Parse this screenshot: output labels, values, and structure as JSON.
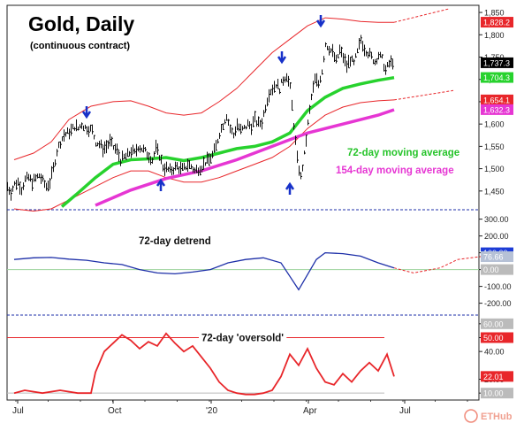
{
  "chart_data": [
    {
      "type": "candlestick",
      "title": "Gold, Daily",
      "subtitle": "(continuous contract)",
      "y_ticks": [
        1450,
        1500,
        1550,
        1600,
        1650,
        1700,
        1750,
        1800,
        1850
      ],
      "y_tick_labels": [
        "1,450",
        "1,500",
        "1,550",
        "1,600",
        "1,650",
        "1,700",
        "1,750",
        "1,800",
        "1,850"
      ],
      "ylim": [
        1410,
        1866
      ],
      "x_tick_labels": [
        "Jul",
        "Oct",
        "'20",
        "Apr",
        "Jul"
      ],
      "annotations": [
        "72-day moving average",
        "154-day moving average"
      ],
      "value_tags": [
        {
          "label": "1,828.2",
          "value": 1828.2,
          "color": "#e8262a"
        },
        {
          "label": "1,737.3",
          "value": 1737.3,
          "color": "#000000"
        },
        {
          "label": "1,704.3",
          "value": 1704.3,
          "color": "#27d22d"
        },
        {
          "label": "1,654.1",
          "value": 1654.1,
          "color": "#e8262a"
        },
        {
          "label": "1,632.3",
          "value": 1632.3,
          "color": "#e636d3"
        }
      ],
      "price_path": [
        [
          0,
          1460
        ],
        [
          4,
          1448
        ],
        [
          8,
          1465
        ],
        [
          12,
          1470
        ],
        [
          16,
          1455
        ],
        [
          20,
          1475
        ],
        [
          24,
          1480
        ],
        [
          28,
          1470
        ],
        [
          32,
          1478
        ],
        [
          36,
          1485
        ],
        [
          40,
          1472
        ],
        [
          44,
          1460
        ],
        [
          48,
          1470
        ],
        [
          52,
          1500
        ],
        [
          56,
          1540
        ],
        [
          60,
          1560
        ],
        [
          64,
          1575
        ],
        [
          68,
          1580
        ],
        [
          72,
          1585
        ],
        [
          76,
          1595
        ],
        [
          80,
          1590
        ],
        [
          84,
          1600
        ],
        [
          88,
          1592
        ],
        [
          92,
          1590
        ],
        [
          96,
          1585
        ],
        [
          100,
          1560
        ],
        [
          104,
          1555
        ],
        [
          108,
          1545
        ],
        [
          112,
          1550
        ],
        [
          116,
          1560
        ],
        [
          120,
          1548
        ],
        [
          124,
          1540
        ],
        [
          128,
          1520
        ],
        [
          132,
          1525
        ],
        [
          136,
          1530
        ],
        [
          140,
          1540
        ],
        [
          144,
          1535
        ],
        [
          148,
          1550
        ],
        [
          152,
          1545
        ],
        [
          156,
          1538
        ],
        [
          160,
          1530
        ],
        [
          164,
          1520
        ],
        [
          168,
          1545
        ],
        [
          172,
          1530
        ],
        [
          176,
          1505
        ],
        [
          180,
          1500
        ],
        [
          184,
          1495
        ],
        [
          188,
          1500
        ],
        [
          192,
          1505
        ],
        [
          196,
          1498
        ],
        [
          200,
          1500
        ],
        [
          204,
          1510
        ],
        [
          208,
          1505
        ],
        [
          212,
          1495
        ],
        [
          216,
          1500
        ],
        [
          220,
          1505
        ],
        [
          224,
          1515
        ],
        [
          228,
          1520
        ],
        [
          232,
          1530
        ],
        [
          236,
          1550
        ],
        [
          240,
          1580
        ],
        [
          244,
          1600
        ],
        [
          248,
          1620
        ],
        [
          252,
          1590
        ],
        [
          256,
          1575
        ],
        [
          260,
          1600
        ],
        [
          264,
          1585
        ],
        [
          268,
          1590
        ],
        [
          272,
          1600
        ],
        [
          276,
          1595
        ],
        [
          280,
          1610
        ],
        [
          284,
          1600
        ],
        [
          288,
          1605
        ],
        [
          292,
          1640
        ],
        [
          296,
          1670
        ],
        [
          300,
          1680
        ],
        [
          304,
          1690
        ],
        [
          308,
          1680
        ],
        [
          312,
          1700
        ],
        [
          316,
          1710
        ],
        [
          320,
          1680
        ],
        [
          324,
          1600
        ],
        [
          328,
          1520
        ],
        [
          332,
          1480
        ],
        [
          336,
          1530
        ],
        [
          340,
          1600
        ],
        [
          344,
          1660
        ],
        [
          348,
          1700
        ],
        [
          352,
          1690
        ],
        [
          356,
          1720
        ],
        [
          360,
          1780
        ],
        [
          364,
          1770
        ],
        [
          368,
          1760
        ],
        [
          372,
          1740
        ],
        [
          376,
          1765
        ],
        [
          380,
          1750
        ],
        [
          384,
          1730
        ],
        [
          388,
          1745
        ],
        [
          392,
          1735
        ],
        [
          396,
          1760
        ],
        [
          400,
          1790
        ],
        [
          404,
          1770
        ],
        [
          408,
          1760
        ],
        [
          412,
          1750
        ],
        [
          416,
          1740
        ],
        [
          420,
          1755
        ],
        [
          424,
          1745
        ],
        [
          428,
          1720
        ],
        [
          432,
          1735
        ],
        [
          436,
          1740
        ]
      ],
      "ma72": [
        [
          62,
          1415
        ],
        [
          80,
          1445
        ],
        [
          100,
          1480
        ],
        [
          120,
          1510
        ],
        [
          140,
          1520
        ],
        [
          160,
          1522
        ],
        [
          180,
          1525
        ],
        [
          200,
          1518
        ],
        [
          220,
          1525
        ],
        [
          240,
          1535
        ],
        [
          260,
          1545
        ],
        [
          280,
          1550
        ],
        [
          300,
          1560
        ],
        [
          320,
          1580
        ],
        [
          340,
          1630
        ],
        [
          360,
          1660
        ],
        [
          380,
          1680
        ],
        [
          400,
          1690
        ],
        [
          420,
          1698
        ],
        [
          438,
          1704
        ]
      ],
      "ma154": [
        [
          100,
          1418
        ],
        [
          140,
          1452
        ],
        [
          180,
          1478
        ],
        [
          220,
          1495
        ],
        [
          260,
          1520
        ],
        [
          300,
          1550
        ],
        [
          340,
          1580
        ],
        [
          380,
          1600
        ],
        [
          420,
          1620
        ],
        [
          438,
          1632
        ]
      ],
      "upper_band": [
        [
          8,
          1520
        ],
        [
          30,
          1535
        ],
        [
          50,
          1560
        ],
        [
          70,
          1610
        ],
        [
          95,
          1640
        ],
        [
          120,
          1650
        ],
        [
          140,
          1652
        ],
        [
          160,
          1640
        ],
        [
          180,
          1625
        ],
        [
          200,
          1620
        ],
        [
          220,
          1625
        ],
        [
          240,
          1650
        ],
        [
          260,
          1680
        ],
        [
          280,
          1720
        ],
        [
          300,
          1760
        ],
        [
          320,
          1790
        ],
        [
          340,
          1820
        ],
        [
          360,
          1838
        ],
        [
          380,
          1835
        ],
        [
          400,
          1830
        ],
        [
          420,
          1828
        ],
        [
          438,
          1828
        ]
      ],
      "lower_band": [
        [
          8,
          1410
        ],
        [
          30,
          1405
        ],
        [
          50,
          1410
        ],
        [
          70,
          1430
        ],
        [
          95,
          1455
        ],
        [
          120,
          1480
        ],
        [
          140,
          1495
        ],
        [
          160,
          1495
        ],
        [
          180,
          1480
        ],
        [
          200,
          1470
        ],
        [
          220,
          1470
        ],
        [
          240,
          1480
        ],
        [
          260,
          1495
        ],
        [
          280,
          1510
        ],
        [
          300,
          1525
        ],
        [
          320,
          1550
        ],
        [
          340,
          1590
        ],
        [
          360,
          1620
        ],
        [
          380,
          1638
        ],
        [
          400,
          1648
        ],
        [
          420,
          1652
        ],
        [
          438,
          1654
        ]
      ],
      "upper_projection": [
        [
          438,
          1828
        ],
        [
          500,
          1858
        ]
      ],
      "lower_projection": [
        [
          438,
          1654
        ],
        [
          505,
          1675
        ]
      ]
    },
    {
      "type": "line",
      "title": "72-day detrend",
      "y_ticks": [
        -200,
        -100,
        0,
        100,
        200,
        300
      ],
      "y_tick_labels": [
        "-200.00",
        "-100.00",
        "0.00",
        "100.00",
        "200.00",
        "300.00"
      ],
      "ylim": [
        -260,
        340
      ],
      "value_tags": [
        {
          "label": "100.00",
          "value": 100,
          "color": "#1d3cd6"
        },
        {
          "label": "76.66",
          "value": 76.66,
          "color": "#b6c1d6"
        },
        {
          "label": "0.00",
          "value": 0,
          "color": "#bbbbbb"
        }
      ],
      "series_path": [
        [
          8,
          60
        ],
        [
          30,
          70
        ],
        [
          50,
          72
        ],
        [
          70,
          62
        ],
        [
          90,
          55
        ],
        [
          110,
          40
        ],
        [
          130,
          30
        ],
        [
          150,
          0
        ],
        [
          170,
          -20
        ],
        [
          190,
          -25
        ],
        [
          210,
          -15
        ],
        [
          230,
          0
        ],
        [
          250,
          40
        ],
        [
          270,
          60
        ],
        [
          290,
          70
        ],
        [
          310,
          40
        ],
        [
          320,
          -40
        ],
        [
          330,
          -120
        ],
        [
          340,
          -30
        ],
        [
          350,
          60
        ],
        [
          360,
          100
        ],
        [
          380,
          95
        ],
        [
          400,
          80
        ],
        [
          420,
          40
        ],
        [
          438,
          10
        ]
      ],
      "projection": [
        [
          438,
          10
        ],
        [
          460,
          -20
        ],
        [
          490,
          10
        ],
        [
          510,
          60
        ],
        [
          540,
          80
        ]
      ]
    },
    {
      "type": "line",
      "title": "72-day 'oversold'",
      "y_ticks": [
        10,
        20,
        40,
        50,
        60
      ],
      "y_tick_labels": [
        "10.00",
        "20.00",
        "40.00",
        "50.00",
        "60.00"
      ],
      "ylim": [
        5,
        65
      ],
      "value_tags": [
        {
          "label": "60.00",
          "value": 60,
          "color": "#bbbbbb"
        },
        {
          "label": "50.00",
          "value": 50,
          "color": "#e8262a"
        },
        {
          "label": "22.01",
          "value": 22.01,
          "color": "#e8262a"
        },
        {
          "label": "10.00",
          "value": 10,
          "color": "#bbbbbb"
        }
      ],
      "series": [
        [
          8,
          10
        ],
        [
          20,
          12
        ],
        [
          40,
          10
        ],
        [
          60,
          12
        ],
        [
          80,
          10
        ],
        [
          95,
          10
        ],
        [
          100,
          25
        ],
        [
          110,
          40
        ],
        [
          120,
          46
        ],
        [
          130,
          52
        ],
        [
          140,
          48
        ],
        [
          150,
          42
        ],
        [
          160,
          47
        ],
        [
          170,
          44
        ],
        [
          180,
          53
        ],
        [
          190,
          46
        ],
        [
          200,
          40
        ],
        [
          210,
          44
        ],
        [
          220,
          36
        ],
        [
          230,
          28
        ],
        [
          240,
          18
        ],
        [
          250,
          12
        ],
        [
          260,
          10
        ],
        [
          270,
          9
        ],
        [
          280,
          9
        ],
        [
          290,
          10
        ],
        [
          300,
          12
        ],
        [
          310,
          22
        ],
        [
          320,
          38
        ],
        [
          330,
          30
        ],
        [
          340,
          42
        ],
        [
          350,
          28
        ],
        [
          360,
          18
        ],
        [
          370,
          16
        ],
        [
          380,
          24
        ],
        [
          390,
          18
        ],
        [
          400,
          26
        ],
        [
          410,
          32
        ],
        [
          420,
          26
        ],
        [
          430,
          38
        ],
        [
          438,
          22
        ]
      ]
    }
  ],
  "watermark": "ETHub"
}
